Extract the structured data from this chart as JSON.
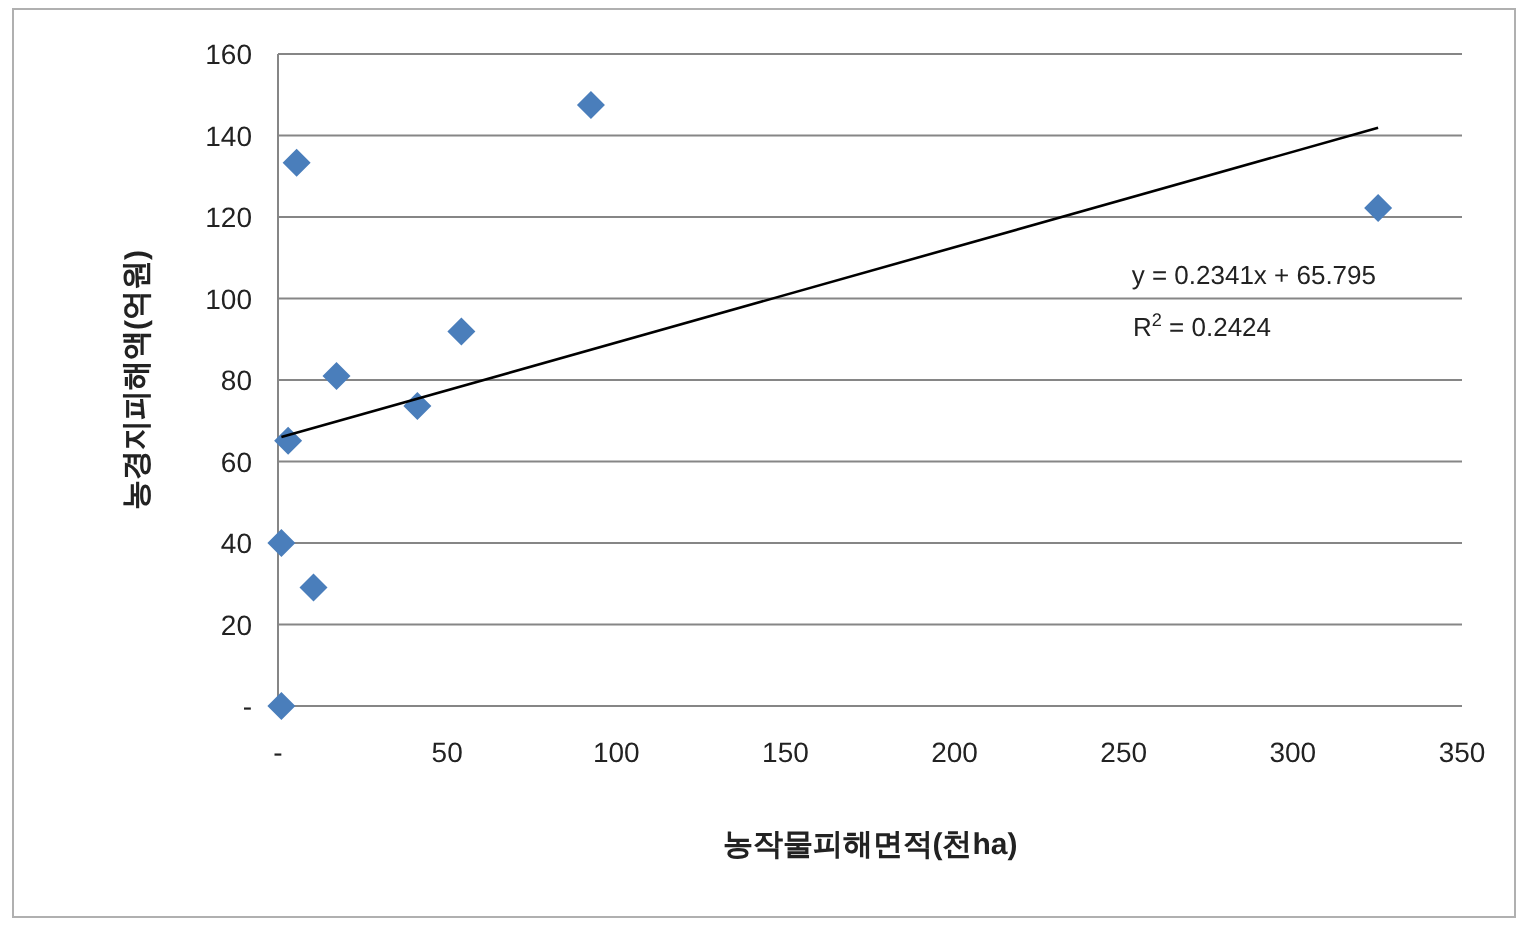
{
  "chart_data": {
    "type": "scatter",
    "xlabel": "농작물피해면적(천ha)",
    "ylabel": "농경지피해액(억원)",
    "xlim": [
      0,
      350
    ],
    "xticks": [
      {
        "value": 0,
        "label": "-"
      },
      50,
      100,
      150,
      200,
      250,
      300,
      350
    ],
    "ylim": [
      0,
      160
    ],
    "yticks": [
      {
        "value": 0,
        "label": "-"
      },
      20,
      40,
      60,
      80,
      100,
      120,
      140,
      160
    ],
    "grid": "y",
    "series": [
      {
        "color": "#4a7ebb",
        "marker": "diamond",
        "x": [
          1,
          1,
          3,
          5.5,
          10.5,
          17.3,
          41.2,
          54.2,
          92.5,
          325.2
        ],
        "values": [
          0,
          40,
          65.1,
          133.3,
          29.1,
          81,
          73.6,
          91.9,
          147.5,
          122.2
        ]
      },
      {
        "type": "line",
        "color": "#000000",
        "x": [
          1,
          325.2
        ],
        "values": [
          66.0,
          141.9
        ]
      }
    ],
    "annotations": [
      "y = 0.2341x + 65.795",
      "R$^{2}$ = 0.2424"
    ]
  }
}
